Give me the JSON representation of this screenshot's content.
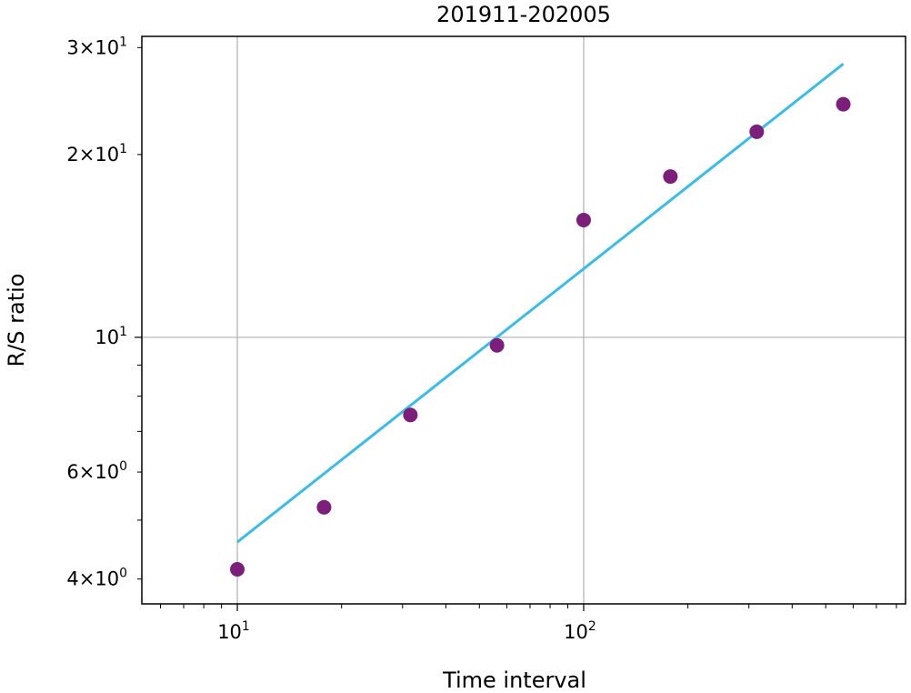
{
  "chart_data": {
    "type": "scatter",
    "title": "201911-202005",
    "xlabel": "Time interval",
    "ylabel": "R/S ratio",
    "xscale": "log",
    "yscale": "log",
    "xlim": [
      5.3,
      850
    ],
    "ylim": [
      3.64,
      31.3
    ],
    "grid": true,
    "x_ticks": [
      {
        "value": 10,
        "base": "10",
        "exp": "1"
      },
      {
        "value": 100,
        "base": "10",
        "exp": "2"
      }
    ],
    "y_ticks": [
      {
        "value": 4,
        "coef": "4",
        "exp": "0"
      },
      {
        "value": 6,
        "coef": "6",
        "exp": "0"
      },
      {
        "value": 10,
        "coef": "",
        "exp": "1"
      },
      {
        "value": 20,
        "coef": "2",
        "exp": "1"
      },
      {
        "value": 30,
        "coef": "3",
        "exp": "1"
      }
    ],
    "series": [
      {
        "kind": "points",
        "color": "#7b1f7b",
        "x": [
          10,
          17.8,
          31.6,
          56.2,
          100,
          178,
          316,
          562
        ],
        "y": [
          4.15,
          5.25,
          7.45,
          9.7,
          15.6,
          18.4,
          21.8,
          24.2
        ]
      },
      {
        "kind": "fit-line",
        "color": "#3bbce6",
        "x": [
          10,
          562
        ],
        "y": [
          4.6,
          28.2
        ]
      }
    ]
  }
}
